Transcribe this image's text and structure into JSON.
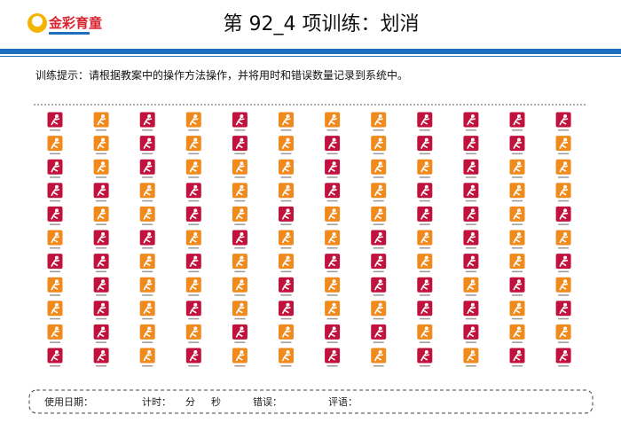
{
  "header": {
    "logo_text": "金彩育童",
    "title": "第 92_4 项训练：划消"
  },
  "instruction": "训练提示：请根据教案中的操作方法操作，并将用时和错误数量记录到系统中。",
  "footer": {
    "fields": [
      "使用日期：",
      "计时：",
      "分",
      "秒",
      "错误：",
      "评语："
    ]
  }
}
